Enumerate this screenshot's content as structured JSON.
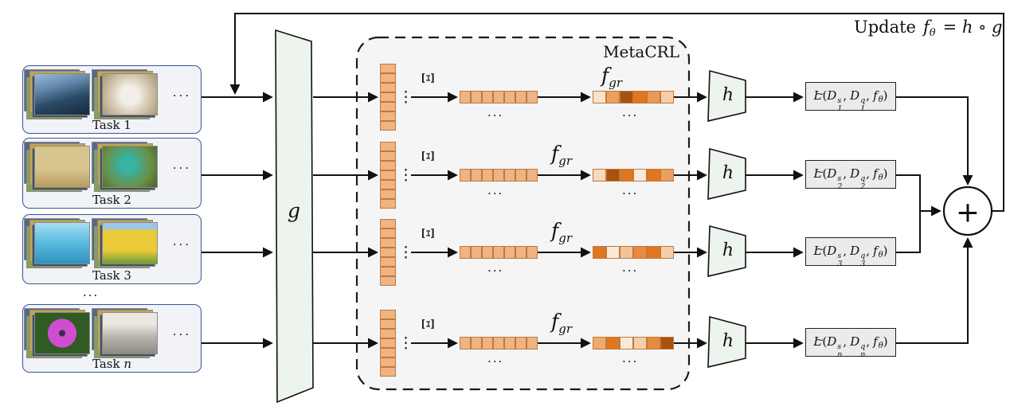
{
  "figure": {
    "update_word": "Update",
    "update_f": "f",
    "update_f_sub": "θ",
    "update_rhs": "= h ∘ g",
    "metacrl_label": "MetaCRL",
    "encoder_label": "g",
    "head_label": "h",
    "xi_label": "Ξ",
    "fgr_f": "f",
    "fgr_sub": "gr",
    "plus": "+",
    "hdots": "...",
    "vdots": "⋮"
  },
  "tasks": [
    {
      "word": "Task",
      "index": "1",
      "photos": [
        "car",
        "secretary-bird"
      ]
    },
    {
      "word": "Task",
      "index": "2",
      "photos": [
        "lion",
        "hummingbird"
      ]
    },
    {
      "word": "Task",
      "index": "3",
      "photos": [
        "dolphin",
        "sunflower-field"
      ]
    },
    {
      "word": "Task",
      "index": "n",
      "photos": [
        "purple-daisy",
        "cat"
      ]
    }
  ],
  "losses": [
    {
      "sub": "1"
    },
    {
      "sub": "2"
    },
    {
      "sub": "3"
    },
    {
      "sub": "n"
    }
  ],
  "math": {
    "tilde": "~",
    "L": "L",
    "lp": "(",
    "rp": ")",
    "D": "D",
    "s": "s",
    "q": "q",
    "comma": ",",
    "f": "f",
    "theta": "θ"
  },
  "memory": {
    "cell_border": "#bc7a40",
    "stack_colors": [
      "#f0b383",
      "#f0b383",
      "#f0b383",
      "#f0b383",
      "#f0b383",
      "#f0b383",
      "#f0b383"
    ],
    "uniform_row": [
      "#f0b383",
      "#f0b383",
      "#f0b383",
      "#f0b383",
      "#f0b383",
      "#f0b383",
      "#f0b383"
    ],
    "varied_rows": [
      [
        "#fae3ca",
        "#eca05e",
        "#a9520e",
        "#e2761e",
        "#eb9a54",
        "#f6cda6"
      ],
      [
        "#f8d9b9",
        "#a9520e",
        "#e2761e",
        "#fbe9d6",
        "#e2761e",
        "#eca05e"
      ],
      [
        "#e2761e",
        "#fbe9d6",
        "#f2c293",
        "#e88b3c",
        "#e2761e",
        "#f6cda6"
      ],
      [
        "#efa96b",
        "#e2761e",
        "#fbe9d6",
        "#f6cda6",
        "#e88b3c",
        "#a9520e"
      ]
    ]
  },
  "colors": {
    "cell_base": "#f0b383",
    "cell_border": "#bc7a40",
    "trapezoid_fill": "#edf3ed",
    "metacrl_bg": "#f5f5f6",
    "task_box_bg": "#f1f3f7",
    "task_box_border": "#3a5694",
    "loss_box_bg": "#ebebed",
    "line_color": "#111111"
  }
}
